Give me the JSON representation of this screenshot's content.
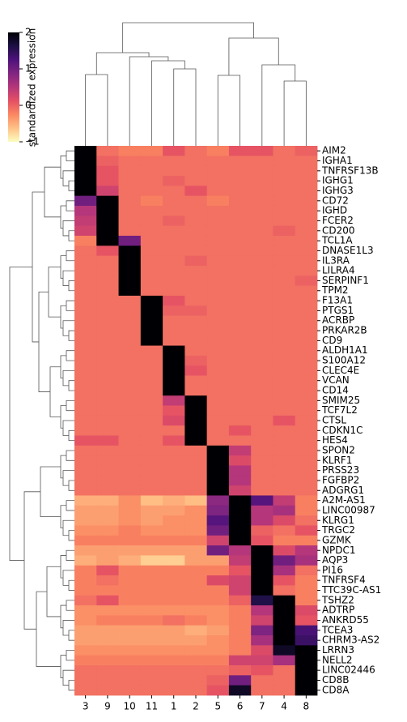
{
  "chart_data": {
    "type": "heatmap",
    "colorbar_label": "standardized expression",
    "colormap": "magma_r",
    "clim": [
      -1,
      2
    ],
    "cticks": [
      {
        "value": -1,
        "label": "−1"
      },
      0,
      1,
      2
    ],
    "columns": [
      "3",
      "9",
      "10",
      "11",
      "1",
      "2",
      "5",
      "6",
      "7",
      "4",
      "8"
    ],
    "rows": [
      "AIM2",
      "IGHA1",
      "TNFRSF13B",
      "IGHG1",
      "IGHG3",
      "CD72",
      "IGHD",
      "FCER2",
      "CD200",
      "TCL1A",
      "DNASE1L3",
      "IL3RA",
      "LILRA4",
      "SERPINF1",
      "TPM2",
      "F13A1",
      "PTGS1",
      "ACRBP",
      "PRKAR2B",
      "CD9",
      "ALDH1A1",
      "S100A12",
      "CLEC4E",
      "VCAN",
      "CD14",
      "SMIM25",
      "TCF7L2",
      "CTSL",
      "CDKN1C",
      "HES4",
      "SPON2",
      "KLRF1",
      "PRSS23",
      "FGFBP2",
      "ADGRG1",
      "A2M-AS1",
      "LINC00987",
      "KLRG1",
      "TRGC2",
      "GZMK",
      "NPDC1",
      "AQP3",
      "PI16",
      "TNFRSF4",
      "TTC39C-AS1",
      "TSHZ2",
      "ADTRP",
      "ANKRD55",
      "TCEA3",
      "CHRM3-AS2",
      "LRRN3",
      "NELL2",
      "LINC02446",
      "CD8B",
      "CD8A"
    ],
    "values": [
      [
        2,
        -0.1,
        -0.2,
        -0.2,
        0.1,
        -0.1,
        -0.2,
        0.1,
        0.1,
        -0.1,
        0
      ],
      [
        2,
        0,
        -0.1,
        -0.1,
        -0.1,
        -0.1,
        -0.1,
        -0.1,
        -0.1,
        -0.1,
        -0.1
      ],
      [
        2,
        0.1,
        -0.1,
        -0.1,
        -0.1,
        -0.1,
        -0.1,
        -0.1,
        -0.1,
        -0.1,
        -0.1
      ],
      [
        2,
        0.1,
        -0.1,
        -0.1,
        0,
        -0.1,
        -0.1,
        -0.1,
        -0.1,
        -0.1,
        -0.1
      ],
      [
        2,
        0.3,
        -0.1,
        -0.1,
        -0.1,
        0.1,
        -0.1,
        -0.1,
        -0.1,
        -0.1,
        -0.1
      ],
      [
        1,
        2,
        -0.1,
        -0.2,
        -0.1,
        -0.1,
        -0.2,
        -0.1,
        -0.1,
        -0.1,
        -0.1
      ],
      [
        0.5,
        2,
        -0.1,
        -0.1,
        -0.1,
        -0.1,
        -0.1,
        -0.1,
        -0.1,
        -0.1,
        -0.1
      ],
      [
        0.4,
        2,
        -0.1,
        -0.1,
        0,
        -0.1,
        -0.1,
        -0.1,
        -0.1,
        -0.1,
        -0.1
      ],
      [
        0.3,
        2,
        -0.1,
        -0.1,
        -0.1,
        -0.1,
        -0.1,
        -0.1,
        -0.1,
        0,
        -0.1
      ],
      [
        -0.2,
        2,
        1,
        -0.1,
        -0.1,
        -0.1,
        -0.1,
        -0.1,
        -0.1,
        -0.1,
        -0.1
      ],
      [
        -0.1,
        0.1,
        2,
        -0.1,
        -0.1,
        -0.1,
        -0.1,
        -0.1,
        -0.1,
        -0.1,
        -0.1
      ],
      [
        -0.1,
        -0.1,
        2,
        -0.1,
        -0.1,
        0,
        -0.1,
        -0.1,
        -0.1,
        -0.1,
        -0.1
      ],
      [
        -0.1,
        -0.1,
        2,
        -0.1,
        -0.1,
        -0.1,
        -0.1,
        -0.1,
        -0.1,
        -0.1,
        -0.1
      ],
      [
        -0.1,
        -0.1,
        2,
        -0.1,
        -0.1,
        -0.1,
        -0.1,
        -0.1,
        -0.1,
        -0.1,
        0
      ],
      [
        -0.1,
        -0.1,
        2,
        -0.1,
        -0.1,
        -0.1,
        -0.1,
        -0.1,
        -0.1,
        -0.1,
        -0.1
      ],
      [
        -0.1,
        -0.1,
        -0.1,
        2,
        0.1,
        -0.1,
        -0.1,
        -0.1,
        -0.1,
        -0.1,
        -0.1
      ],
      [
        -0.1,
        -0.1,
        -0.1,
        2,
        0,
        0,
        -0.1,
        -0.1,
        -0.1,
        -0.1,
        -0.1
      ],
      [
        -0.1,
        -0.1,
        -0.1,
        2,
        -0.1,
        -0.1,
        -0.1,
        -0.1,
        -0.1,
        -0.1,
        -0.1
      ],
      [
        -0.1,
        -0.1,
        -0.1,
        2,
        -0.1,
        -0.1,
        -0.1,
        -0.1,
        -0.1,
        -0.1,
        -0.1
      ],
      [
        -0.1,
        -0.1,
        -0.1,
        2,
        -0.1,
        -0.1,
        -0.1,
        -0.1,
        -0.1,
        -0.1,
        -0.1
      ],
      [
        -0.1,
        -0.1,
        -0.1,
        -0.1,
        2,
        -0.1,
        -0.1,
        -0.1,
        -0.1,
        -0.1,
        -0.1
      ],
      [
        -0.1,
        -0.1,
        -0.1,
        -0.1,
        2,
        0,
        -0.1,
        -0.1,
        -0.1,
        -0.1,
        -0.1
      ],
      [
        -0.1,
        -0.1,
        -0.1,
        -0.1,
        2,
        0.1,
        -0.1,
        -0.1,
        -0.1,
        -0.1,
        -0.1
      ],
      [
        -0.1,
        -0.1,
        -0.1,
        -0.1,
        2,
        -0.1,
        -0.1,
        -0.1,
        -0.1,
        -0.1,
        -0.1
      ],
      [
        -0.1,
        -0.1,
        -0.1,
        -0.1,
        2,
        -0.1,
        -0.1,
        -0.1,
        -0.1,
        -0.1,
        -0.1
      ],
      [
        -0.1,
        -0.1,
        -0.1,
        -0.1,
        0.4,
        2,
        -0.1,
        -0.1,
        -0.1,
        -0.1,
        -0.1
      ],
      [
        -0.1,
        -0.1,
        -0.1,
        -0.1,
        0.1,
        2,
        -0.1,
        -0.1,
        -0.1,
        -0.1,
        -0.1
      ],
      [
        -0.1,
        -0.1,
        -0.1,
        -0.1,
        0.2,
        2,
        -0.1,
        -0.1,
        -0.1,
        0.1,
        -0.1
      ],
      [
        -0.1,
        -0.1,
        -0.1,
        -0.1,
        -0.1,
        2,
        -0.1,
        0.1,
        -0.1,
        -0.1,
        -0.1
      ],
      [
        0.1,
        0.1,
        -0.1,
        -0.1,
        0.1,
        2,
        -0.1,
        -0.1,
        -0.1,
        -0.1,
        -0.1
      ],
      [
        -0.1,
        -0.1,
        -0.1,
        -0.1,
        -0.1,
        -0.1,
        2,
        0.4,
        -0.1,
        -0.1,
        -0.1
      ],
      [
        -0.1,
        -0.1,
        -0.1,
        -0.1,
        -0.1,
        -0.1,
        2,
        0.2,
        -0.1,
        -0.1,
        -0.1
      ],
      [
        -0.1,
        -0.1,
        -0.1,
        -0.1,
        -0.1,
        -0.1,
        2,
        0.5,
        -0.1,
        -0.1,
        -0.1
      ],
      [
        -0.1,
        -0.1,
        -0.1,
        -0.1,
        -0.1,
        -0.1,
        2,
        0.5,
        -0.1,
        -0.1,
        -0.1
      ],
      [
        -0.1,
        -0.1,
        -0.1,
        -0.1,
        -0.1,
        -0.1,
        2,
        0.3,
        -0.1,
        -0.1,
        -0.1
      ],
      [
        -0.5,
        -0.5,
        -0.3,
        -0.6,
        -0.5,
        -0.6,
        0.8,
        2,
        1.2,
        0.4,
        -0.2
      ],
      [
        -0.4,
        -0.4,
        -0.3,
        -0.4,
        -0.4,
        -0.3,
        0.9,
        2,
        0.5,
        0.6,
        -0.2
      ],
      [
        -0.4,
        -0.4,
        -0.3,
        -0.4,
        -0.3,
        -0.3,
        1.2,
        2,
        0.5,
        0.2,
        -0.1
      ],
      [
        -0.3,
        -0.3,
        -0.2,
        -0.3,
        -0.3,
        -0.3,
        1,
        2,
        0,
        -0.1,
        0.1
      ],
      [
        -0.2,
        -0.2,
        -0.2,
        -0.2,
        -0.2,
        -0.2,
        0.3,
        2,
        0.1,
        -0.2,
        -0.2
      ],
      [
        -0.4,
        -0.4,
        -0.4,
        -0.4,
        -0.4,
        -0.4,
        1,
        0.5,
        2,
        0.2,
        0.5
      ],
      [
        -0.5,
        -0.4,
        -0.5,
        -0.7,
        -0.7,
        -0.4,
        -0.4,
        0.4,
        2,
        1,
        0.6
      ],
      [
        -0.2,
        0.1,
        -0.2,
        -0.2,
        -0.2,
        -0.2,
        -0.2,
        0.1,
        2,
        0.6,
        -0.1
      ],
      [
        -0.2,
        -0.1,
        -0.2,
        -0.2,
        -0.2,
        -0.2,
        0.2,
        0.3,
        2,
        0.1,
        -0.2
      ],
      [
        -0.2,
        -0.2,
        -0.2,
        -0.2,
        -0.2,
        -0.2,
        -0.2,
        0.3,
        2,
        -0.1,
        -0.2
      ],
      [
        -0.1,
        0.1,
        -0.2,
        -0.2,
        -0.2,
        -0.2,
        -0.2,
        0,
        1.6,
        2,
        -0.2
      ],
      [
        -0.3,
        -0.3,
        -0.3,
        -0.3,
        -0.3,
        -0.3,
        -0.3,
        -0.2,
        0.5,
        2,
        0.2
      ],
      [
        -0.3,
        -0.2,
        -0.2,
        -0.2,
        -0.1,
        -0.2,
        -0.3,
        -0.2,
        0.3,
        2,
        0.1
      ],
      [
        -0.4,
        -0.4,
        -0.4,
        -0.4,
        -0.4,
        -0.5,
        -0.4,
        -0.2,
        0.9,
        2,
        1.3
      ],
      [
        -0.4,
        -0.4,
        -0.4,
        -0.4,
        -0.4,
        -0.4,
        -0.3,
        -0.2,
        0.6,
        2,
        1.4
      ],
      [
        -0.3,
        -0.3,
        -0.3,
        -0.3,
        -0.3,
        -0.3,
        -0.3,
        -0.2,
        0.2,
        1.8,
        2
      ],
      [
        -0.2,
        -0.2,
        -0.2,
        -0.2,
        -0.2,
        -0.2,
        -0.2,
        0.3,
        0.3,
        0.6,
        2
      ],
      [
        -0.1,
        -0.1,
        -0.1,
        -0.1,
        -0.1,
        -0.1,
        -0.1,
        0,
        0.1,
        -0.1,
        2
      ],
      [
        -0.1,
        -0.1,
        -0.1,
        -0.1,
        -0.1,
        -0.1,
        0,
        1,
        -0.1,
        -0.1,
        2
      ],
      [
        -0.1,
        -0.1,
        -0.1,
        -0.1,
        -0.1,
        -0.1,
        0.1,
        1.8,
        -0.1,
        -0.1,
        2
      ]
    ]
  }
}
